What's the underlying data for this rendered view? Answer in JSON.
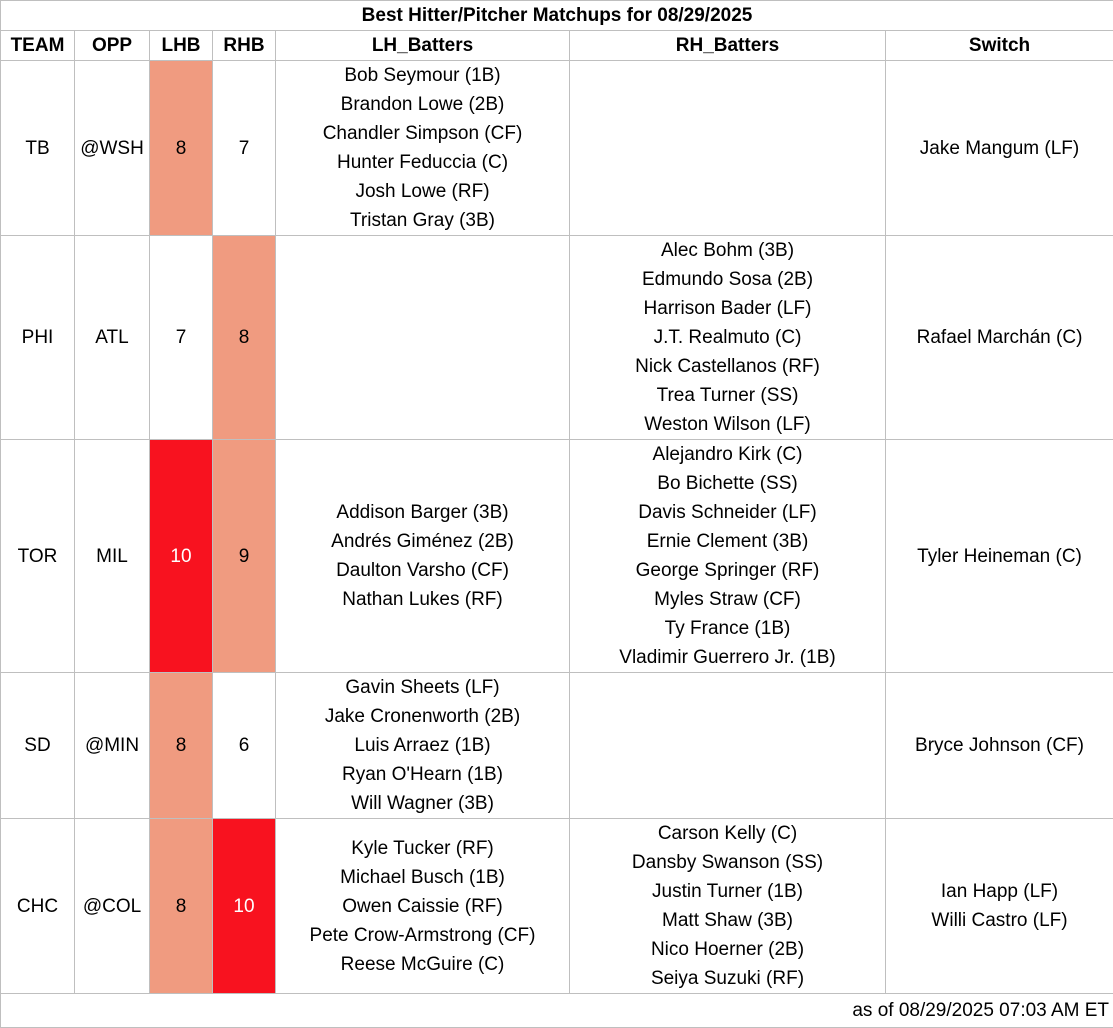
{
  "title": "Best Hitter/Pitcher Matchups for 08/29/2025",
  "headers": [
    "TEAM",
    "OPP",
    "LHB",
    "RHB",
    "LH_Batters",
    "RH_Batters",
    "Switch"
  ],
  "rows": [
    {
      "team": "TB",
      "opp": "@WSH",
      "lhb": "8",
      "rhb": "7",
      "lhb_color": "#f09b80",
      "rhb_color": "#ffffff",
      "lh_batters": [
        "Bob Seymour (1B)",
        "Brandon Lowe (2B)",
        "Chandler Simpson (CF)",
        "Hunter Feduccia (C)",
        "Josh Lowe (RF)",
        "Tristan Gray (3B)"
      ],
      "rh_batters": [],
      "switch": [
        "Jake Mangum (LF)"
      ]
    },
    {
      "team": "PHI",
      "opp": "ATL",
      "lhb": "7",
      "rhb": "8",
      "lhb_color": "#ffffff",
      "rhb_color": "#f09b80",
      "lh_batters": [],
      "rh_batters": [
        "Alec Bohm (3B)",
        "Edmundo Sosa (2B)",
        "Harrison Bader (LF)",
        "J.T. Realmuto (C)",
        "Nick Castellanos (RF)",
        "Trea Turner (SS)",
        "Weston Wilson (LF)"
      ],
      "switch": [
        "Rafael Marchán (C)"
      ]
    },
    {
      "team": "TOR",
      "opp": "MIL",
      "lhb": "10",
      "rhb": "9",
      "lhb_color": "#f8121f",
      "rhb_color": "#f09b80",
      "lh_batters": [
        "Addison Barger (3B)",
        "Andrés Giménez (2B)",
        "Daulton Varsho (CF)",
        "Nathan Lukes (RF)"
      ],
      "rh_batters": [
        "Alejandro Kirk (C)",
        "Bo Bichette (SS)",
        "Davis Schneider (LF)",
        "Ernie Clement (3B)",
        "George Springer (RF)",
        "Myles Straw (CF)",
        "Ty France (1B)",
        "Vladimir Guerrero Jr. (1B)"
      ],
      "switch": [
        "Tyler Heineman (C)"
      ]
    },
    {
      "team": "SD",
      "opp": "@MIN",
      "lhb": "8",
      "rhb": "6",
      "lhb_color": "#f09b80",
      "rhb_color": "#ffffff",
      "lh_batters": [
        "Gavin Sheets (LF)",
        "Jake Cronenworth (2B)",
        "Luis Arraez (1B)",
        "Ryan O'Hearn (1B)",
        "Will Wagner (3B)"
      ],
      "rh_batters": [],
      "switch": [
        "Bryce Johnson (CF)"
      ]
    },
    {
      "team": "CHC",
      "opp": "@COL",
      "lhb": "8",
      "rhb": "10",
      "lhb_color": "#f09b80",
      "rhb_color": "#f8121f",
      "lh_batters": [
        "Kyle Tucker (RF)",
        "Michael Busch (1B)",
        "Owen Caissie (RF)",
        "Pete Crow-Armstrong (CF)",
        "Reese McGuire (C)"
      ],
      "rh_batters": [
        "Carson Kelly (C)",
        "Dansby Swanson (SS)",
        "Justin Turner (1B)",
        "Matt Shaw (3B)",
        "Nico Hoerner (2B)",
        "Seiya Suzuki (RF)"
      ],
      "switch": [
        "Ian Happ (LF)",
        "Willi Castro (LF)"
      ]
    }
  ],
  "footer": "as of 08/29/2025 07:03 AM ET"
}
